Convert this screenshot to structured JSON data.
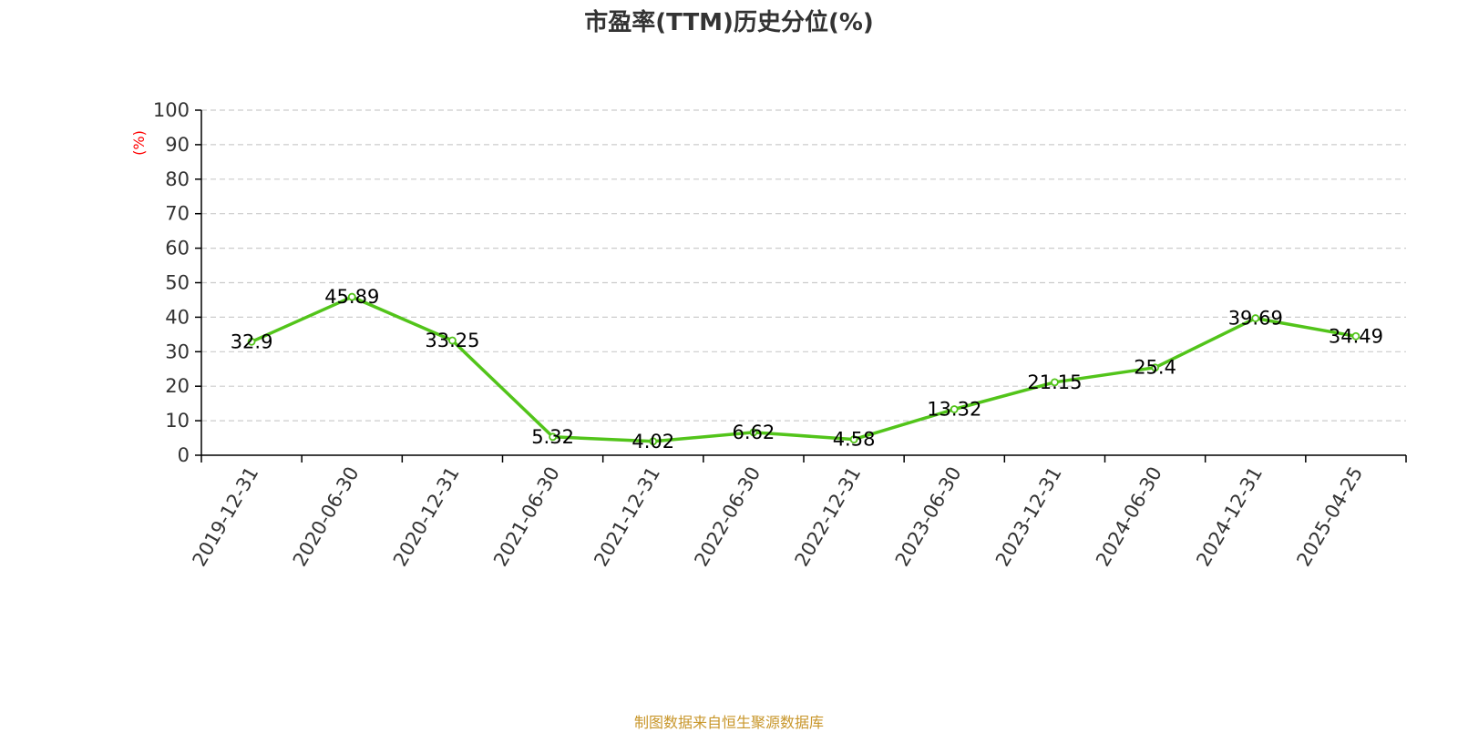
{
  "title": "市盈率(TTM)历史分位(%)",
  "source": "制图数据来自恒生聚源数据库",
  "chart_data": {
    "type": "line",
    "title": "市盈率(TTM)历史分位(%)",
    "ylabel": "(%)",
    "xlabel": "",
    "ylim": [
      0,
      100
    ],
    "yticks": [
      0,
      10,
      20,
      30,
      40,
      50,
      60,
      70,
      80,
      90,
      100
    ],
    "grid": true,
    "categories": [
      "2019-12-31",
      "2020-06-30",
      "2020-12-31",
      "2021-06-30",
      "2021-12-31",
      "2022-06-30",
      "2022-12-31",
      "2023-06-30",
      "2023-12-31",
      "2024-06-30",
      "2024-12-31",
      "2025-04-25"
    ],
    "series": [
      {
        "values": [
          32.9,
          45.89,
          33.25,
          5.32,
          4.02,
          6.62,
          4.58,
          13.32,
          21.15,
          25.4,
          39.69,
          34.49
        ],
        "labels": [
          "32.9",
          "45.89",
          "33.25",
          "5.32",
          "4.02",
          "6.62",
          "4.58",
          "13.32",
          "21.15",
          "25.4",
          "39.69",
          "34.49"
        ],
        "color": "#52c41a"
      }
    ],
    "colors": {
      "axis": "#000000",
      "grid": "#cccccc",
      "ylabel": "#ff0000",
      "tick_label": "#333333",
      "data_label": "#000000"
    }
  }
}
